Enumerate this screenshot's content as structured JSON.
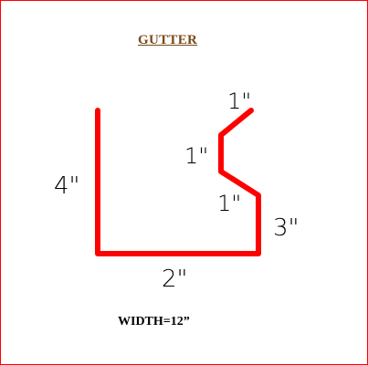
{
  "title": "GUTTER",
  "footer": {
    "width_label": "WIDTH=12”"
  },
  "dimensions": {
    "side_left": "4\"",
    "bottom": "2\"",
    "side_right": "3\"",
    "bend_lower": "1\"",
    "bend_middle": "1\"",
    "bend_top": "1\""
  },
  "colors": {
    "border": "#ff0000",
    "profile_stroke": "#ff0000",
    "title": "#7a4a1a",
    "text": "#000000"
  }
}
